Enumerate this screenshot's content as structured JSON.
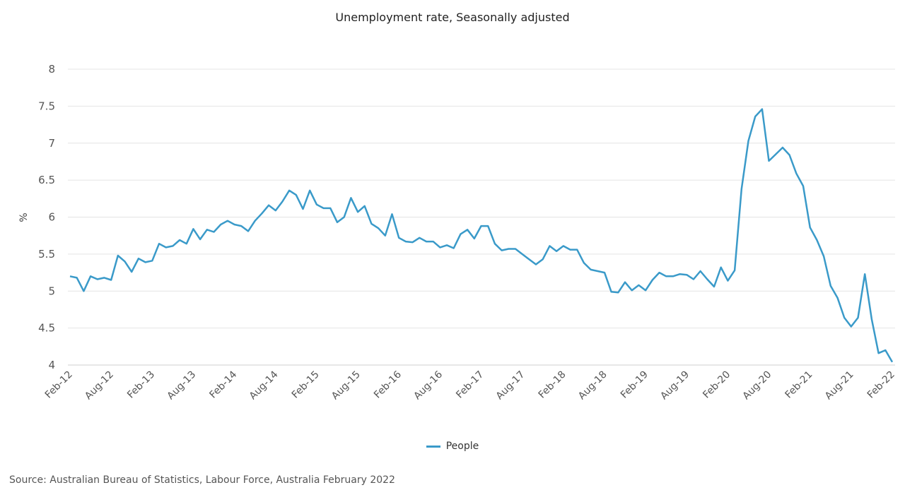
{
  "chart_data": {
    "type": "line",
    "title": "Unemployment rate, Seasonally adjusted",
    "ylabel": "%",
    "xlabel": "",
    "ylim": [
      4,
      8
    ],
    "yticks": [
      "4",
      "4.5",
      "5",
      "5.5",
      "6",
      "6.5",
      "7",
      "7.5",
      "8"
    ],
    "xtick_labels": [
      "Feb-12",
      "Aug-12",
      "Feb-13",
      "Aug-13",
      "Feb-14",
      "Aug-14",
      "Feb-15",
      "Aug-15",
      "Feb-16",
      "Aug-16",
      "Feb-17",
      "Aug-17",
      "Feb-18",
      "Aug-18",
      "Feb-19",
      "Aug-19",
      "Feb-20",
      "Aug-20",
      "Feb-21",
      "Aug-21",
      "Feb-22"
    ],
    "x_start": "Feb-12",
    "x_end": "Feb-22",
    "x_frequency": "monthly",
    "grid": true,
    "legend_position": "bottom",
    "series": [
      {
        "name": "People",
        "color": "#3a9ac9",
        "values": [
          5.2,
          5.18,
          5.0,
          5.2,
          5.16,
          5.18,
          5.15,
          5.48,
          5.4,
          5.26,
          5.44,
          5.39,
          5.41,
          5.64,
          5.59,
          5.61,
          5.69,
          5.64,
          5.84,
          5.7,
          5.83,
          5.8,
          5.9,
          5.95,
          5.9,
          5.88,
          5.81,
          5.95,
          6.05,
          6.16,
          6.09,
          6.21,
          6.36,
          6.3,
          6.11,
          6.36,
          6.17,
          6.12,
          6.12,
          5.93,
          6.0,
          6.26,
          6.07,
          6.15,
          5.91,
          5.85,
          5.75,
          6.04,
          5.72,
          5.67,
          5.66,
          5.72,
          5.67,
          5.67,
          5.59,
          5.62,
          5.58,
          5.77,
          5.83,
          5.71,
          5.88,
          5.88,
          5.64,
          5.55,
          5.57,
          5.57,
          5.5,
          5.43,
          5.36,
          5.43,
          5.61,
          5.54,
          5.61,
          5.56,
          5.56,
          5.38,
          5.29,
          5.27,
          5.25,
          4.99,
          4.98,
          5.12,
          5.01,
          5.08,
          5.01,
          5.15,
          5.25,
          5.2,
          5.2,
          5.23,
          5.22,
          5.16,
          5.27,
          5.16,
          5.06,
          5.32,
          5.14,
          5.28,
          6.38,
          7.03,
          7.36,
          7.46,
          6.76,
          6.85,
          6.94,
          6.84,
          6.59,
          6.42,
          5.86,
          5.69,
          5.47,
          5.07,
          4.91,
          4.64,
          4.52,
          4.64,
          5.23,
          4.62,
          4.16,
          4.2,
          4.04
        ]
      }
    ]
  },
  "source": "Source: Australian Bureau of Statistics, Labour Force, Australia February 2022"
}
